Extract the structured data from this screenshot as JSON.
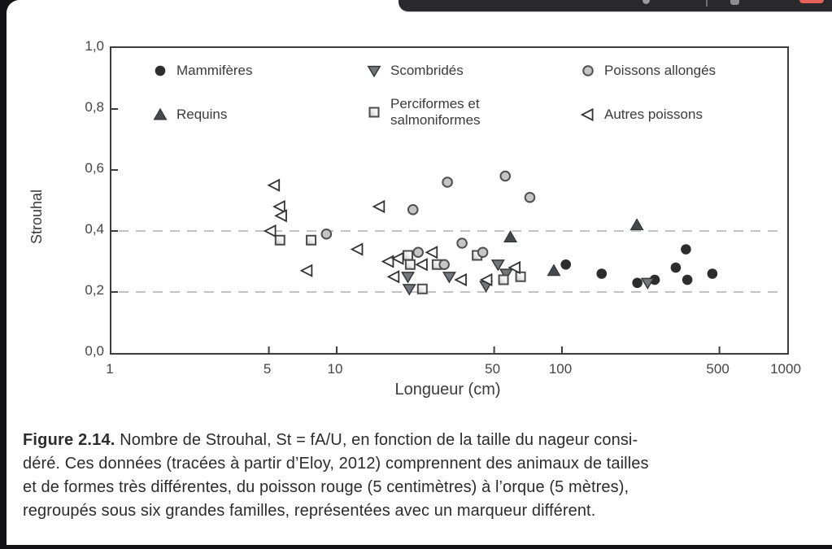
{
  "window": {
    "topbar_icons": [
      "dot-icon",
      "separator",
      "window-icon",
      "record-pill"
    ],
    "topbar_color": "#29292d",
    "record_pill_color": "#e5625c"
  },
  "chart_data": {
    "type": "scatter",
    "title": "",
    "xlabel": "Longueur (cm)",
    "ylabel": "Strouhal",
    "x_scale": "log",
    "xlim": [
      1,
      1000
    ],
    "ylim": [
      0.0,
      1.0
    ],
    "x_ticks": [
      1,
      5,
      10,
      50,
      100,
      500,
      1000
    ],
    "x_tick_labels": [
      "1",
      "5",
      "10",
      "50",
      "100",
      "500",
      "1000"
    ],
    "y_ticks": [
      0.0,
      0.2,
      0.4,
      0.6,
      0.8,
      1.0
    ],
    "y_tick_labels": [
      "0,0",
      "0,2",
      "0,4",
      "0,6",
      "0,8",
      "1,0"
    ],
    "gridlines_y": [
      0.2,
      0.4
    ],
    "grid_style": "dashed",
    "legend_position": "top-inside",
    "legend": [
      {
        "label": "Mammifères",
        "marker": "circle_filled"
      },
      {
        "label": "Requins",
        "marker": "triangle_up"
      },
      {
        "label": "Scombridés",
        "marker": "triangle_down"
      },
      {
        "label_line1": "Perciformes et",
        "label_line2": "salmoniformes",
        "marker": "square_open"
      },
      {
        "label": "Poissons allongés",
        "marker": "circle_gray"
      },
      {
        "label": "Autres poissons",
        "marker": "triangle_left"
      }
    ],
    "series": [
      {
        "name": "Mammifères",
        "marker": "circle_filled",
        "points": [
          [
            104,
            0.29
          ],
          [
            150,
            0.26
          ],
          [
            216,
            0.23
          ],
          [
            258,
            0.24
          ],
          [
            320,
            0.28
          ],
          [
            355,
            0.34
          ],
          [
            360,
            0.24
          ],
          [
            465,
            0.26
          ]
        ]
      },
      {
        "name": "Requins",
        "marker": "triangle_up",
        "points": [
          [
            59,
            0.38
          ],
          [
            92,
            0.27
          ],
          [
            215,
            0.42
          ]
        ]
      },
      {
        "name": "Scombridés",
        "marker": "triangle_down",
        "points": [
          [
            20.7,
            0.25
          ],
          [
            21,
            0.21
          ],
          [
            31.6,
            0.25
          ],
          [
            46,
            0.22
          ],
          [
            52,
            0.29
          ],
          [
            56.5,
            0.26
          ],
          [
            240,
            0.23
          ]
        ]
      },
      {
        "name": "Perciformes et salmoniformes",
        "marker": "square_open",
        "points": [
          [
            5.6,
            0.37
          ],
          [
            7.7,
            0.37
          ],
          [
            20.7,
            0.32
          ],
          [
            21.2,
            0.29
          ],
          [
            27.9,
            0.29
          ],
          [
            24,
            0.21
          ],
          [
            42,
            0.32
          ],
          [
            55,
            0.24
          ],
          [
            65.5,
            0.25
          ]
        ]
      },
      {
        "name": "Poissons allongés",
        "marker": "circle_gray",
        "points": [
          [
            9,
            0.39
          ],
          [
            21.8,
            0.47
          ],
          [
            31,
            0.56
          ],
          [
            56,
            0.58
          ],
          [
            72,
            0.51
          ],
          [
            36,
            0.36
          ],
          [
            44.5,
            0.33
          ],
          [
            23,
            0.33
          ],
          [
            30,
            0.29
          ]
        ]
      },
      {
        "name": "Autres poissons",
        "marker": "triangle_left",
        "points": [
          [
            5.1,
            0.4
          ],
          [
            5.3,
            0.55
          ],
          [
            5.6,
            0.48
          ],
          [
            5.7,
            0.45
          ],
          [
            7.4,
            0.27
          ],
          [
            12.4,
            0.34
          ],
          [
            15.5,
            0.48
          ],
          [
            17,
            0.3
          ],
          [
            18.8,
            0.31
          ],
          [
            18,
            0.25
          ],
          [
            24,
            0.29
          ],
          [
            26.6,
            0.33
          ],
          [
            35.8,
            0.24
          ],
          [
            46.5,
            0.24
          ],
          [
            62,
            0.28
          ]
        ]
      }
    ]
  },
  "caption": {
    "label": "Figure 2.14.",
    "line1": "Nombre de Strouhal, St = fA/U, en fonction de la taille du nageur consi-",
    "line2": "déré. Ces données (tracées à partir d’Eloy, 2012) comprennent des animaux de tailles",
    "line3": "et de formes très différentes, du poisson rouge (5 centimètres) à l’orque (5 mètres),",
    "line4": "regroupés sous six grandes familles, représentées avec un marqueur différent."
  }
}
